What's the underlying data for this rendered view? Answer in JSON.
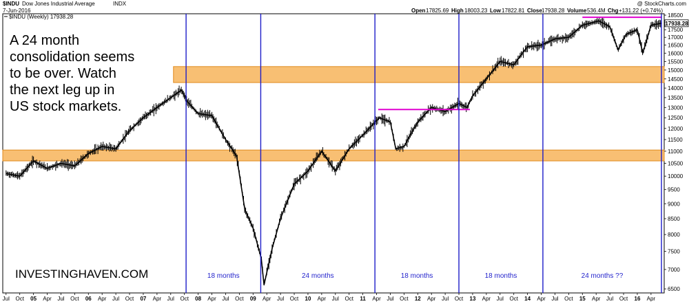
{
  "header": {
    "symbol": "$INDU",
    "name": "Dow Jones Industrial Average",
    "exchange": "INDX",
    "date": "7-Jun-2016",
    "watermark": "@ StockCharts.com",
    "legend": "$INDU (Weekly) 17938.28",
    "quote_open_label": "Open",
    "quote_open": "17825.69",
    "quote_high_label": "High",
    "quote_high": "18003.23",
    "quote_low_label": "Low",
    "quote_low": "17822.81",
    "quote_close_label": "Close",
    "quote_close": "17938.28",
    "quote_volume_label": "Volume",
    "quote_volume": "536.4M",
    "quote_chg_label": "Chg",
    "quote_chg": "+131.22 (+0.74%)",
    "price_tag": "17938.28"
  },
  "annotation": {
    "lines": [
      "A 24 month",
      "consolidation seems",
      "to be over. Watch",
      "the next leg up in",
      "US stock markets."
    ],
    "site": "INVESTINGHAVEN.COM"
  },
  "chart_data": {
    "type": "line",
    "title": "$INDU Dow Jones Industrial Average INDX",
    "ylim": [
      6400,
      18600
    ],
    "yticks": [
      6500,
      7000,
      7500,
      8000,
      8500,
      9000,
      9500,
      10000,
      10500,
      11000,
      11500,
      12000,
      12500,
      13000,
      13500,
      14000,
      14500,
      15000,
      15500,
      16000,
      16500,
      17000,
      17500,
      18000,
      18500
    ],
    "x_labels": [
      "Jul",
      "Oct",
      "05",
      "Apr",
      "Jul",
      "Oct",
      "06",
      "Apr",
      "Jul",
      "Oct",
      "07",
      "Apr",
      "Jul",
      "Oct",
      "08",
      "Apr",
      "Jul",
      "Oct",
      "09",
      "Apr",
      "Jul",
      "Oct",
      "10",
      "Apr",
      "Jul",
      "Oct",
      "11",
      "Apr",
      "Jul",
      "Oct",
      "12",
      "Apr",
      "Jul",
      "Oct",
      "13",
      "Apr",
      "Jul",
      "Oct",
      "14",
      "Apr",
      "Jul",
      "Oct",
      "15",
      "Apr",
      "Jul",
      "Oct",
      "16",
      "Apr"
    ],
    "x_start": 2004.5,
    "x_step": 0.25,
    "series": [
      {
        "values_x": [
          2004.5,
          2004.75,
          2005.0,
          2005.25,
          2005.5,
          2005.75,
          2006.0,
          2006.25,
          2006.5,
          2006.75,
          2007.0,
          2007.25,
          2007.5,
          2007.7,
          2007.8,
          2008.0,
          2008.25,
          2008.5,
          2008.7,
          2008.85,
          2009.0,
          2009.15,
          2009.2,
          2009.35,
          2009.5,
          2009.75,
          2010.0,
          2010.25,
          2010.5,
          2010.75,
          2011.0,
          2011.3,
          2011.5,
          2011.6,
          2011.75,
          2012.0,
          2012.25,
          2012.5,
          2012.75,
          2012.9,
          2013.0,
          2013.25,
          2013.5,
          2013.75,
          2014.0,
          2014.25,
          2014.5,
          2014.75,
          2015.0,
          2015.3,
          2015.5,
          2015.65,
          2015.8,
          2016.0,
          2016.1,
          2016.25,
          2016.44
        ],
        "values_y": [
          10100,
          10000,
          10600,
          10300,
          10500,
          10400,
          10900,
          11200,
          11100,
          11900,
          12500,
          13000,
          13500,
          13900,
          13300,
          12700,
          12600,
          11500,
          10800,
          8800,
          8200,
          7300,
          6600,
          7600,
          8500,
          9700,
          10200,
          11000,
          10200,
          11100,
          11700,
          12500,
          12300,
          11100,
          11200,
          12300,
          13000,
          12800,
          13200,
          13000,
          13600,
          14500,
          15500,
          15300,
          16400,
          16500,
          16900,
          17000,
          17800,
          18100,
          17700,
          16200,
          17200,
          17500,
          16000,
          17800,
          17938
        ]
      }
    ],
    "bands": [
      {
        "from": 14300,
        "to": 15200,
        "color": "#f6aa44"
      },
      {
        "from": 10600,
        "to": 11050,
        "color": "#f6aa44"
      }
    ],
    "resistance_lines": [
      {
        "x_from": 2011.28,
        "x_to": 2012.95,
        "y": 12900,
        "color": "#e000d0"
      },
      {
        "x_from": 2015.0,
        "x_to": 2016.44,
        "y": 18350,
        "color": "#e000d0"
      }
    ],
    "markers": [
      {
        "x": 2007.78,
        "label": ""
      },
      {
        "x": 2009.14,
        "label": "18 months"
      },
      {
        "x": 2011.22,
        "label": "24 months"
      },
      {
        "x": 2012.75,
        "label": "18 months"
      },
      {
        "x": 2014.28,
        "label": "18 months"
      },
      {
        "x": 2016.44,
        "label": "24 months ??"
      }
    ],
    "colors": {
      "price": "#000000",
      "marker": "#1c1cc8",
      "band": "#f6aa44",
      "band_edge": "#e08a1e"
    }
  }
}
